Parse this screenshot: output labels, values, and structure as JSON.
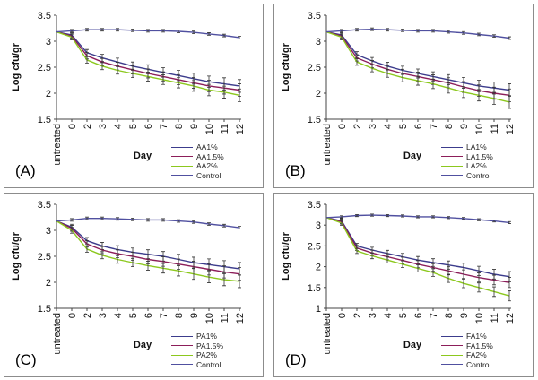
{
  "chart_data": [
    {
      "type": "line",
      "panel_label": "(A)",
      "xlabel": "Day",
      "ylabel": "Log cfu/gr",
      "categories": [
        "untreated",
        "0",
        "2",
        "3",
        "4",
        "5",
        "6",
        "7",
        "8",
        "9",
        "10",
        "11",
        "12"
      ],
      "ylim": [
        1.5,
        3.5
      ],
      "yticks": [
        "1.5",
        "2",
        "2.5",
        "3",
        "3.5"
      ],
      "grid": false,
      "legend_position": "bottom-right",
      "series": [
        {
          "name": "AA1%",
          "color": "#3c3c8c",
          "values": [
            3.18,
            3.12,
            2.78,
            2.68,
            2.6,
            2.52,
            2.46,
            2.4,
            2.34,
            2.28,
            2.22,
            2.18,
            2.14
          ]
        },
        {
          "name": "AA1.5%",
          "color": "#8c1e5a",
          "values": [
            3.18,
            3.1,
            2.72,
            2.6,
            2.52,
            2.45,
            2.38,
            2.32,
            2.26,
            2.2,
            2.14,
            2.1,
            2.06
          ]
        },
        {
          "name": "AA2%",
          "color": "#8cc81e",
          "values": [
            3.18,
            3.08,
            2.64,
            2.52,
            2.44,
            2.38,
            2.32,
            2.26,
            2.2,
            2.14,
            2.06,
            2.02,
            1.96
          ]
        },
        {
          "name": "Control",
          "color": "#5050a0",
          "values": [
            3.18,
            3.2,
            3.22,
            3.22,
            3.22,
            3.21,
            3.2,
            3.2,
            3.19,
            3.17,
            3.14,
            3.11,
            3.07
          ]
        }
      ]
    },
    {
      "type": "line",
      "panel_label": "(B)",
      "xlabel": "Day",
      "ylabel": "Log cfu/gr",
      "categories": [
        "untreated",
        "0",
        "2",
        "3",
        "4",
        "5",
        "6",
        "7",
        "8",
        "9",
        "10",
        "11",
        "12"
      ],
      "ylim": [
        1.5,
        3.5
      ],
      "yticks": [
        "1.5",
        "2",
        "2.5",
        "3",
        "3.5"
      ],
      "grid": false,
      "legend_position": "bottom-right",
      "series": [
        {
          "name": "LA1%",
          "color": "#3c3c8c",
          "values": [
            3.18,
            3.12,
            2.74,
            2.62,
            2.52,
            2.44,
            2.38,
            2.32,
            2.26,
            2.2,
            2.14,
            2.1,
            2.06
          ]
        },
        {
          "name": "LA1.5%",
          "color": "#8c1e5a",
          "values": [
            3.18,
            3.1,
            2.68,
            2.56,
            2.46,
            2.38,
            2.32,
            2.26,
            2.2,
            2.12,
            2.05,
            2.0,
            1.96
          ]
        },
        {
          "name": "LA2%",
          "color": "#8cc81e",
          "values": [
            3.18,
            3.08,
            2.6,
            2.48,
            2.38,
            2.3,
            2.24,
            2.18,
            2.1,
            2.02,
            1.96,
            1.9,
            1.83
          ]
        },
        {
          "name": "Control",
          "color": "#5050a0",
          "values": [
            3.18,
            3.2,
            3.22,
            3.23,
            3.22,
            3.21,
            3.2,
            3.2,
            3.18,
            3.16,
            3.13,
            3.1,
            3.06
          ]
        }
      ]
    },
    {
      "type": "line",
      "panel_label": "(C)",
      "xlabel": "Day",
      "ylabel": "Log cfu/gr",
      "categories": [
        "untreated",
        "0",
        "2",
        "3",
        "4",
        "5",
        "6",
        "7",
        "8",
        "9",
        "10",
        "11",
        "12"
      ],
      "ylim": [
        1.5,
        3.5
      ],
      "yticks": [
        "1.5",
        "2",
        "2.5",
        "3",
        "3.5"
      ],
      "grid": false,
      "legend_position": "bottom-right",
      "series": [
        {
          "name": "PA1%",
          "color": "#3c3c8c",
          "values": [
            3.18,
            3.06,
            2.8,
            2.7,
            2.63,
            2.58,
            2.54,
            2.5,
            2.44,
            2.38,
            2.34,
            2.3,
            2.26
          ]
        },
        {
          "name": "PA1.5%",
          "color": "#8c1e5a",
          "values": [
            3.18,
            3.04,
            2.74,
            2.62,
            2.55,
            2.5,
            2.44,
            2.4,
            2.35,
            2.3,
            2.25,
            2.2,
            2.16
          ]
        },
        {
          "name": "PA2%",
          "color": "#8cc81e",
          "values": [
            3.18,
            3.0,
            2.64,
            2.52,
            2.44,
            2.38,
            2.32,
            2.27,
            2.22,
            2.16,
            2.1,
            2.05,
            2.02
          ]
        },
        {
          "name": "Control",
          "color": "#5050a0",
          "values": [
            3.18,
            3.2,
            3.23,
            3.23,
            3.22,
            3.21,
            3.2,
            3.2,
            3.18,
            3.16,
            3.12,
            3.09,
            3.05
          ]
        }
      ]
    },
    {
      "type": "line",
      "panel_label": "(D)",
      "xlabel": "Day",
      "ylabel": "Log cfu/gr",
      "categories": [
        "untreated",
        "0",
        "2",
        "3",
        "4",
        "5",
        "6",
        "7",
        "8",
        "9",
        "10",
        "11",
        "12"
      ],
      "ylim": [
        1,
        3.5
      ],
      "yticks": [
        "1",
        "1.5",
        "2",
        "2.5",
        "3",
        "3.5"
      ],
      "grid": false,
      "legend_position": "bottom-right",
      "series": [
        {
          "name": "FA1%",
          "color": "#3c3c8c",
          "values": [
            3.18,
            3.1,
            2.5,
            2.4,
            2.32,
            2.24,
            2.16,
            2.1,
            2.04,
            1.98,
            1.9,
            1.82,
            1.76
          ]
        },
        {
          "name": "FA1.5%",
          "color": "#8c1e5a",
          "values": [
            3.18,
            3.08,
            2.45,
            2.33,
            2.24,
            2.15,
            2.06,
            1.98,
            1.9,
            1.82,
            1.74,
            1.68,
            1.62
          ]
        },
        {
          "name": "FA2%",
          "color": "#8cc81e",
          "values": [
            3.18,
            3.05,
            2.38,
            2.26,
            2.16,
            2.06,
            1.96,
            1.86,
            1.72,
            1.6,
            1.5,
            1.4,
            1.3
          ]
        },
        {
          "name": "Control",
          "color": "#5050a0",
          "values": [
            3.18,
            3.2,
            3.23,
            3.24,
            3.23,
            3.22,
            3.2,
            3.2,
            3.18,
            3.16,
            3.13,
            3.1,
            3.06
          ]
        }
      ]
    }
  ]
}
